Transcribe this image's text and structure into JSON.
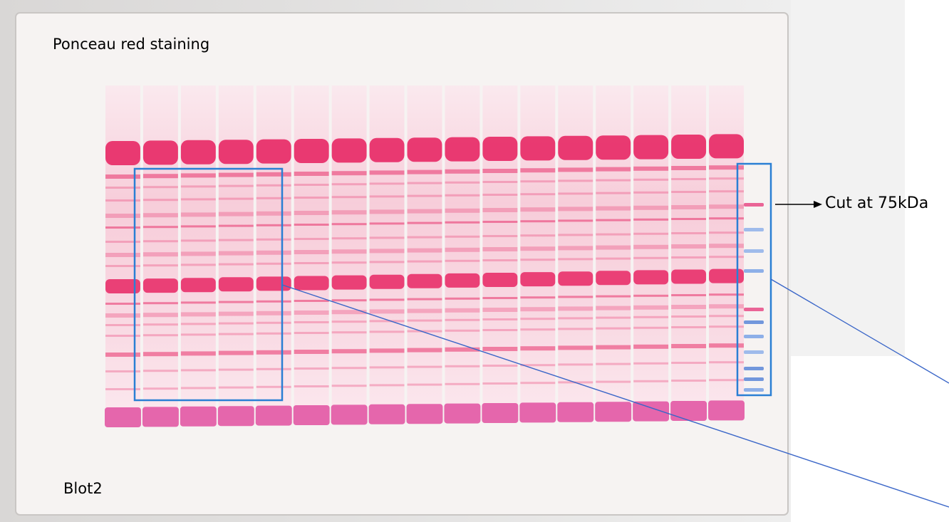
{
  "labels": {
    "title": "Ponceau red staining",
    "blot": "Blot2",
    "cut": "Cut at 75kDa"
  },
  "image": {
    "subject": "western-blot-membrane",
    "lane_count": 17,
    "marker_lane": true
  },
  "colors": {
    "stain": "#e8306a",
    "stain_light": "#f4a3bd",
    "marker_blue": "#5a86d8",
    "highlight_box": "#2a7fd4",
    "membrane": "#f6f3f2"
  }
}
